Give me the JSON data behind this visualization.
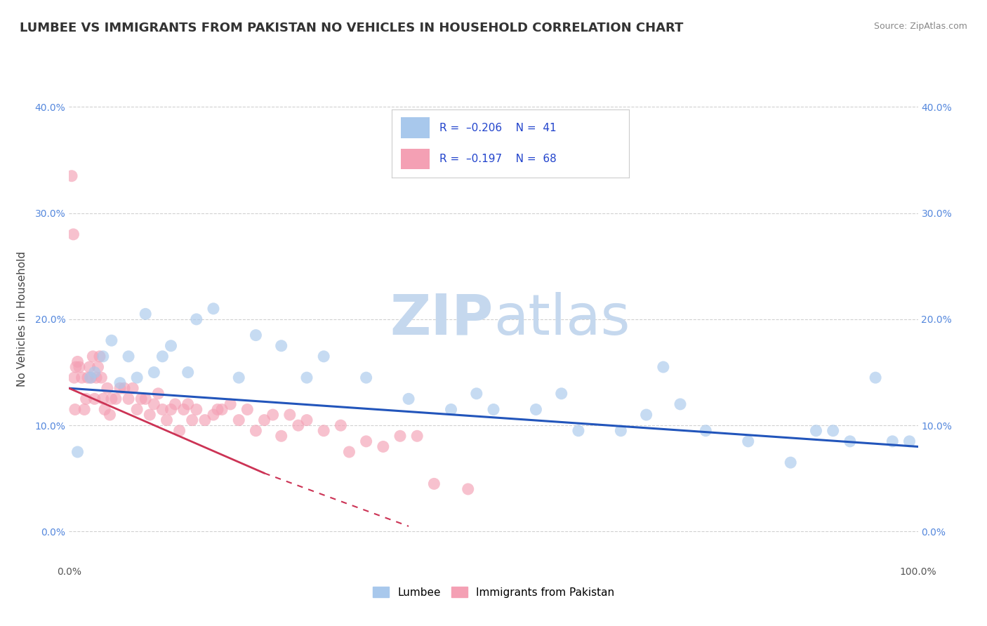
{
  "title": "LUMBEE VS IMMIGRANTS FROM PAKISTAN NO VEHICLES IN HOUSEHOLD CORRELATION CHART",
  "source": "Source: ZipAtlas.com",
  "ylabel": "No Vehicles in Household",
  "xlim": [
    0,
    100
  ],
  "ylim": [
    -3,
    43
  ],
  "yticks": [
    0,
    10,
    20,
    30,
    40
  ],
  "ytick_labels": [
    "0.0%",
    "10.0%",
    "20.0%",
    "30.0%",
    "40.0%"
  ],
  "xticks": [
    0,
    20,
    40,
    60,
    80,
    100
  ],
  "xtick_labels": [
    "0.0%",
    "",
    "",
    "",
    "",
    "100.0%"
  ],
  "lumbee_color": "#A8C8EC",
  "pakistan_color": "#F4A0B4",
  "lumbee_line_color": "#2255BB",
  "pakistan_line_color": "#CC3355",
  "watermark_zip": "ZIP",
  "watermark_atlas": "atlas",
  "watermark_color": "#C5D8EE",
  "lumbee_x": [
    1.0,
    2.5,
    3.0,
    4.0,
    5.0,
    6.0,
    7.0,
    8.0,
    9.0,
    10.0,
    11.0,
    12.0,
    14.0,
    15.0,
    17.0,
    20.0,
    22.0,
    25.0,
    28.0,
    30.0,
    35.0,
    40.0,
    45.0,
    48.0,
    50.0,
    55.0,
    58.0,
    60.0,
    65.0,
    68.0,
    70.0,
    72.0,
    75.0,
    80.0,
    85.0,
    88.0,
    90.0,
    92.0,
    95.0,
    97.0,
    99.0
  ],
  "lumbee_y": [
    7.5,
    14.5,
    15.0,
    16.5,
    18.0,
    14.0,
    16.5,
    14.5,
    20.5,
    15.0,
    16.5,
    17.5,
    15.0,
    20.0,
    21.0,
    14.5,
    18.5,
    17.5,
    14.5,
    16.5,
    14.5,
    12.5,
    11.5,
    13.0,
    11.5,
    11.5,
    13.0,
    9.5,
    9.5,
    11.0,
    15.5,
    12.0,
    9.5,
    8.5,
    6.5,
    9.5,
    9.5,
    8.5,
    14.5,
    8.5,
    8.5
  ],
  "pakistan_x": [
    0.3,
    0.5,
    0.6,
    0.7,
    0.8,
    1.0,
    1.2,
    1.5,
    1.8,
    2.0,
    2.2,
    2.4,
    2.6,
    2.8,
    3.0,
    3.2,
    3.4,
    3.6,
    3.8,
    4.0,
    4.2,
    4.5,
    4.8,
    5.0,
    5.5,
    6.0,
    6.5,
    7.0,
    7.5,
    8.0,
    8.5,
    9.0,
    9.5,
    10.0,
    10.5,
    11.0,
    11.5,
    12.0,
    12.5,
    13.0,
    13.5,
    14.0,
    14.5,
    15.0,
    16.0,
    17.0,
    17.5,
    18.0,
    19.0,
    20.0,
    21.0,
    22.0,
    23.0,
    24.0,
    25.0,
    26.0,
    27.0,
    28.0,
    30.0,
    32.0,
    33.0,
    35.0,
    37.0,
    39.0,
    41.0,
    43.0,
    47.0
  ],
  "pakistan_y": [
    33.5,
    28.0,
    14.5,
    11.5,
    15.5,
    16.0,
    15.5,
    14.5,
    11.5,
    12.5,
    14.5,
    15.5,
    14.5,
    16.5,
    12.5,
    14.5,
    15.5,
    16.5,
    14.5,
    12.5,
    11.5,
    13.5,
    11.0,
    12.5,
    12.5,
    13.5,
    13.5,
    12.5,
    13.5,
    11.5,
    12.5,
    12.5,
    11.0,
    12.0,
    13.0,
    11.5,
    10.5,
    11.5,
    12.0,
    9.5,
    11.5,
    12.0,
    10.5,
    11.5,
    10.5,
    11.0,
    11.5,
    11.5,
    12.0,
    10.5,
    11.5,
    9.5,
    10.5,
    11.0,
    9.0,
    11.0,
    10.0,
    10.5,
    9.5,
    10.0,
    7.5,
    8.5,
    8.0,
    9.0,
    9.0,
    4.5,
    4.0
  ],
  "blue_line": [
    0,
    100,
    13.5,
    8.0
  ],
  "pink_line_solid": [
    0,
    23,
    13.5,
    5.5
  ],
  "pink_line_dashed": [
    23,
    40,
    5.5,
    0.5
  ],
  "background_color": "#FFFFFF",
  "grid_color": "#CCCCCC",
  "title_fontsize": 13,
  "label_fontsize": 11,
  "tick_fontsize": 10,
  "source_fontsize": 9,
  "legend_text_color": "#2244CC",
  "legend_label_color": "#333333"
}
